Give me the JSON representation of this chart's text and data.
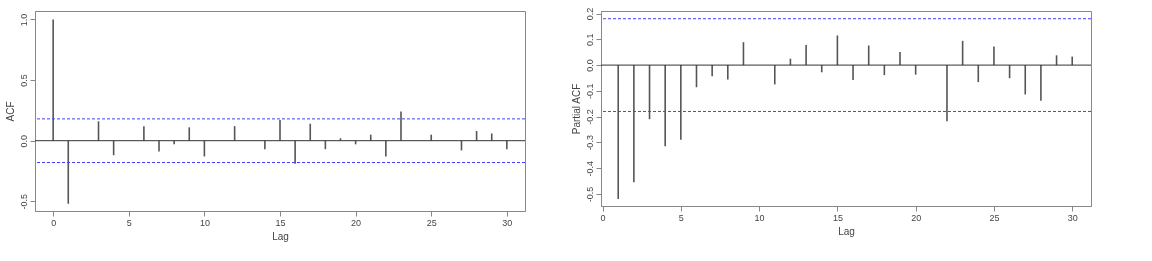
{
  "chart_data": [
    {
      "type": "bar",
      "xlabel": "Lag",
      "ylabel": "ACF",
      "x": [
        0,
        1,
        2,
        3,
        4,
        5,
        6,
        7,
        8,
        9,
        10,
        11,
        12,
        13,
        14,
        15,
        16,
        17,
        18,
        19,
        20,
        21,
        22,
        23,
        24,
        25,
        26,
        27,
        28,
        29,
        30
      ],
      "series": [
        {
          "color": "#555555",
          "values": [
            1.0,
            -0.52,
            null,
            0.16,
            -0.12,
            0.0,
            0.12,
            -0.09,
            -0.03,
            0.11,
            -0.13,
            null,
            0.12,
            0.0,
            -0.07,
            0.17,
            -0.19,
            0.14,
            -0.07,
            0.02,
            -0.03,
            0.05,
            -0.13,
            0.24,
            0.0,
            0.05,
            0.0,
            -0.08,
            0.08,
            0.06,
            -0.07
          ]
        }
      ],
      "xlim": [
        -1.2,
        31.2
      ],
      "xticks": [
        0,
        5,
        10,
        15,
        20,
        25,
        30
      ],
      "ylim": [
        -0.58,
        1.07
      ],
      "yticks": [
        {
          "value": -0.5,
          "label": "-0.5"
        },
        {
          "value": 0,
          "label": "0.0"
        },
        {
          "value": 0.5,
          "label": "0.5"
        },
        {
          "value": 1,
          "label": "1.0"
        }
      ],
      "ref_lines": [
        {
          "axis": "y",
          "value": 0,
          "color": "#333333"
        },
        {
          "axis": "y",
          "value": 0.18,
          "color": "#4040ff",
          "line_style": "dashed"
        },
        {
          "axis": "y",
          "value": -0.18,
          "color": "#4040ff",
          "line_style": "dashed"
        }
      ]
    },
    {
      "type": "bar",
      "xlabel": "Lag",
      "ylabel": "Partial ACF",
      "x": [
        1,
        2,
        3,
        4,
        5,
        6,
        7,
        8,
        9,
        10,
        11,
        12,
        13,
        14,
        15,
        16,
        17,
        18,
        19,
        20,
        21,
        22,
        23,
        24,
        25,
        26,
        27,
        28,
        29,
        30
      ],
      "series": [
        {
          "color": "#555555",
          "values": [
            -0.52,
            -0.455,
            -0.21,
            -0.315,
            -0.29,
            -0.086,
            -0.043,
            -0.056,
            0.089,
            0.0,
            -0.075,
            0.025,
            0.078,
            -0.028,
            0.115,
            -0.058,
            0.076,
            -0.039,
            0.051,
            -0.037,
            0.0,
            -0.218,
            0.094,
            -0.066,
            0.072,
            -0.051,
            -0.114,
            -0.138,
            0.038,
            0.033
          ]
        }
      ],
      "xlim": [
        -0.1,
        31.2
      ],
      "xticks": [
        0,
        5,
        10,
        15,
        20,
        25,
        30
      ],
      "ylim": [
        -0.547,
        0.21
      ],
      "yticks": [
        {
          "value": -0.5,
          "label": "-0.5"
        },
        {
          "value": -0.4,
          "label": "-0.4"
        },
        {
          "value": -0.3,
          "label": "-0.3"
        },
        {
          "value": -0.2,
          "label": "-0.2"
        },
        {
          "value": -0.1,
          "label": "-0.1"
        },
        {
          "value": 0,
          "label": "0.0"
        },
        {
          "value": 0.1,
          "label": "0.1"
        },
        {
          "value": 0.2,
          "label": "0.2"
        }
      ],
      "ref_lines": [
        {
          "axis": "y",
          "value": 0,
          "color": "#333333"
        },
        {
          "axis": "y",
          "value": 0.18,
          "color": "#4040ff",
          "line_style": "dashed"
        },
        {
          "axis": "y",
          "value": -0.18,
          "color": "#4040ff",
          "line_style": "dashed"
        }
      ]
    }
  ]
}
